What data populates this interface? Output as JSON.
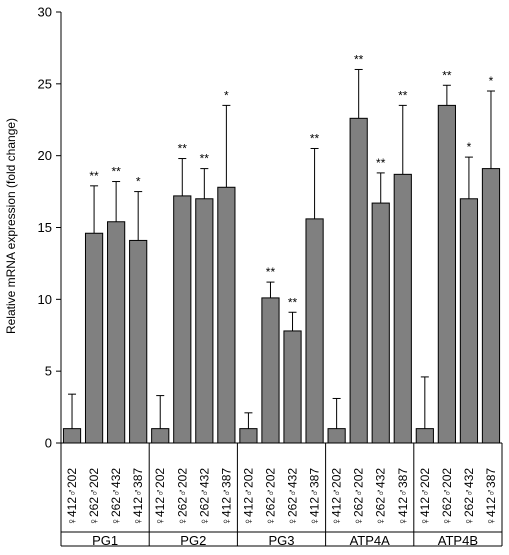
{
  "chart_data": {
    "type": "bar",
    "title": "",
    "xlabel": "",
    "ylabel": "Relative mRNA expression  (fold change)",
    "ylim": [
      0,
      30
    ],
    "yticks": [
      0,
      5,
      10,
      15,
      20,
      25,
      30
    ],
    "grid": false,
    "legend": "none",
    "bar_color": "#808080",
    "bar_stroke": "#000000",
    "groups": [
      {
        "name": "PG1",
        "bars": [
          {
            "label": "♀412♂202",
            "value": 1.0,
            "error": 2.4,
            "sig": ""
          },
          {
            "label": "♀262♂202",
            "value": 14.6,
            "error": 3.3,
            "sig": "**"
          },
          {
            "label": "♀262♂432",
            "value": 15.4,
            "error": 2.8,
            "sig": "**"
          },
          {
            "label": "♀412♂387",
            "value": 14.1,
            "error": 3.4,
            "sig": "*"
          }
        ]
      },
      {
        "name": "PG2",
        "bars": [
          {
            "label": "♀412♂202",
            "value": 1.0,
            "error": 2.3,
            "sig": ""
          },
          {
            "label": "♀262♂202",
            "value": 17.2,
            "error": 2.6,
            "sig": "**"
          },
          {
            "label": "♀262♂432",
            "value": 17.0,
            "error": 2.1,
            "sig": "**"
          },
          {
            "label": "♀412♂387",
            "value": 17.8,
            "error": 5.7,
            "sig": "*"
          }
        ]
      },
      {
        "name": "PG3",
        "bars": [
          {
            "label": "♀412♂202",
            "value": 1.0,
            "error": 1.1,
            "sig": ""
          },
          {
            "label": "♀262♂202",
            "value": 10.1,
            "error": 1.1,
            "sig": "**"
          },
          {
            "label": "♀262♂432",
            "value": 7.8,
            "error": 1.3,
            "sig": "**"
          },
          {
            "label": "♀412♂387",
            "value": 15.6,
            "error": 4.9,
            "sig": "**"
          }
        ]
      },
      {
        "name": "ATP4A",
        "bars": [
          {
            "label": "♀412♂202",
            "value": 1.0,
            "error": 2.1,
            "sig": ""
          },
          {
            "label": "♀262♂202",
            "value": 22.6,
            "error": 3.4,
            "sig": "**"
          },
          {
            "label": "♀262♂432",
            "value": 16.7,
            "error": 2.1,
            "sig": "**"
          },
          {
            "label": "♀412♂387",
            "value": 18.7,
            "error": 4.8,
            "sig": "**"
          }
        ]
      },
      {
        "name": "ATP4B",
        "bars": [
          {
            "label": "♀412♂202",
            "value": 1.0,
            "error": 3.6,
            "sig": ""
          },
          {
            "label": "♀262♂202",
            "value": 23.5,
            "error": 1.4,
            "sig": "**"
          },
          {
            "label": "♀262♂432",
            "value": 17.0,
            "error": 2.9,
            "sig": "*"
          },
          {
            "label": "♀412♂387",
            "value": 19.1,
            "error": 5.4,
            "sig": "*"
          }
        ]
      }
    ]
  }
}
